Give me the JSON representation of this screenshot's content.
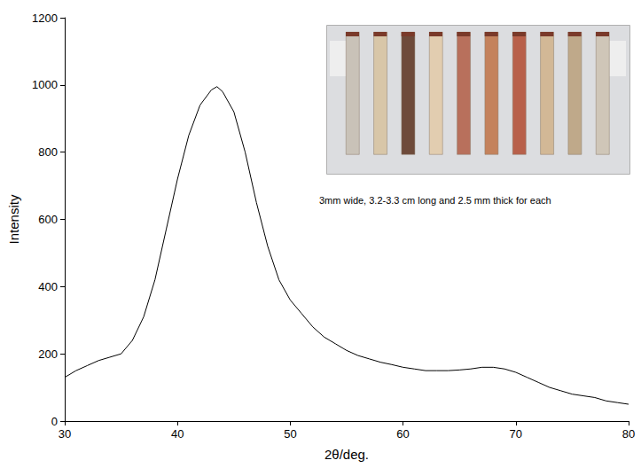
{
  "chart_data": {
    "type": "line",
    "xlabel": "2θ/deg.",
    "ylabel": "Intensity",
    "annotation": "3mm wide, 3.2-3.3 cm long and 2.5 mm thick for each",
    "x": [
      30,
      31,
      32,
      33,
      34,
      35,
      36,
      37,
      38,
      39,
      40,
      41,
      42,
      43,
      43.5,
      44,
      45,
      46,
      47,
      48,
      49,
      50,
      51,
      52,
      53,
      54,
      55,
      56,
      57,
      58,
      59,
      60,
      61,
      62,
      63,
      64,
      65,
      66,
      67,
      68,
      69,
      70,
      71,
      72,
      73,
      74,
      75,
      76,
      77,
      78,
      79,
      80
    ],
    "values": [
      130,
      150,
      165,
      180,
      190,
      200,
      240,
      310,
      420,
      570,
      720,
      850,
      940,
      985,
      995,
      980,
      920,
      800,
      650,
      520,
      420,
      360,
      320,
      280,
      250,
      230,
      210,
      195,
      185,
      175,
      168,
      160,
      155,
      150,
      150,
      150,
      152,
      155,
      160,
      160,
      155,
      145,
      130,
      115,
      100,
      90,
      80,
      75,
      70,
      60,
      55,
      50
    ],
    "color": "#000000",
    "xlim": [
      30,
      80
    ],
    "xticks": [
      30,
      40,
      50,
      60,
      70,
      80
    ],
    "ylim": [
      0,
      1200
    ],
    "yticks": [
      0,
      200,
      400,
      600,
      800,
      1000,
      1200
    ],
    "grid": false
  }
}
